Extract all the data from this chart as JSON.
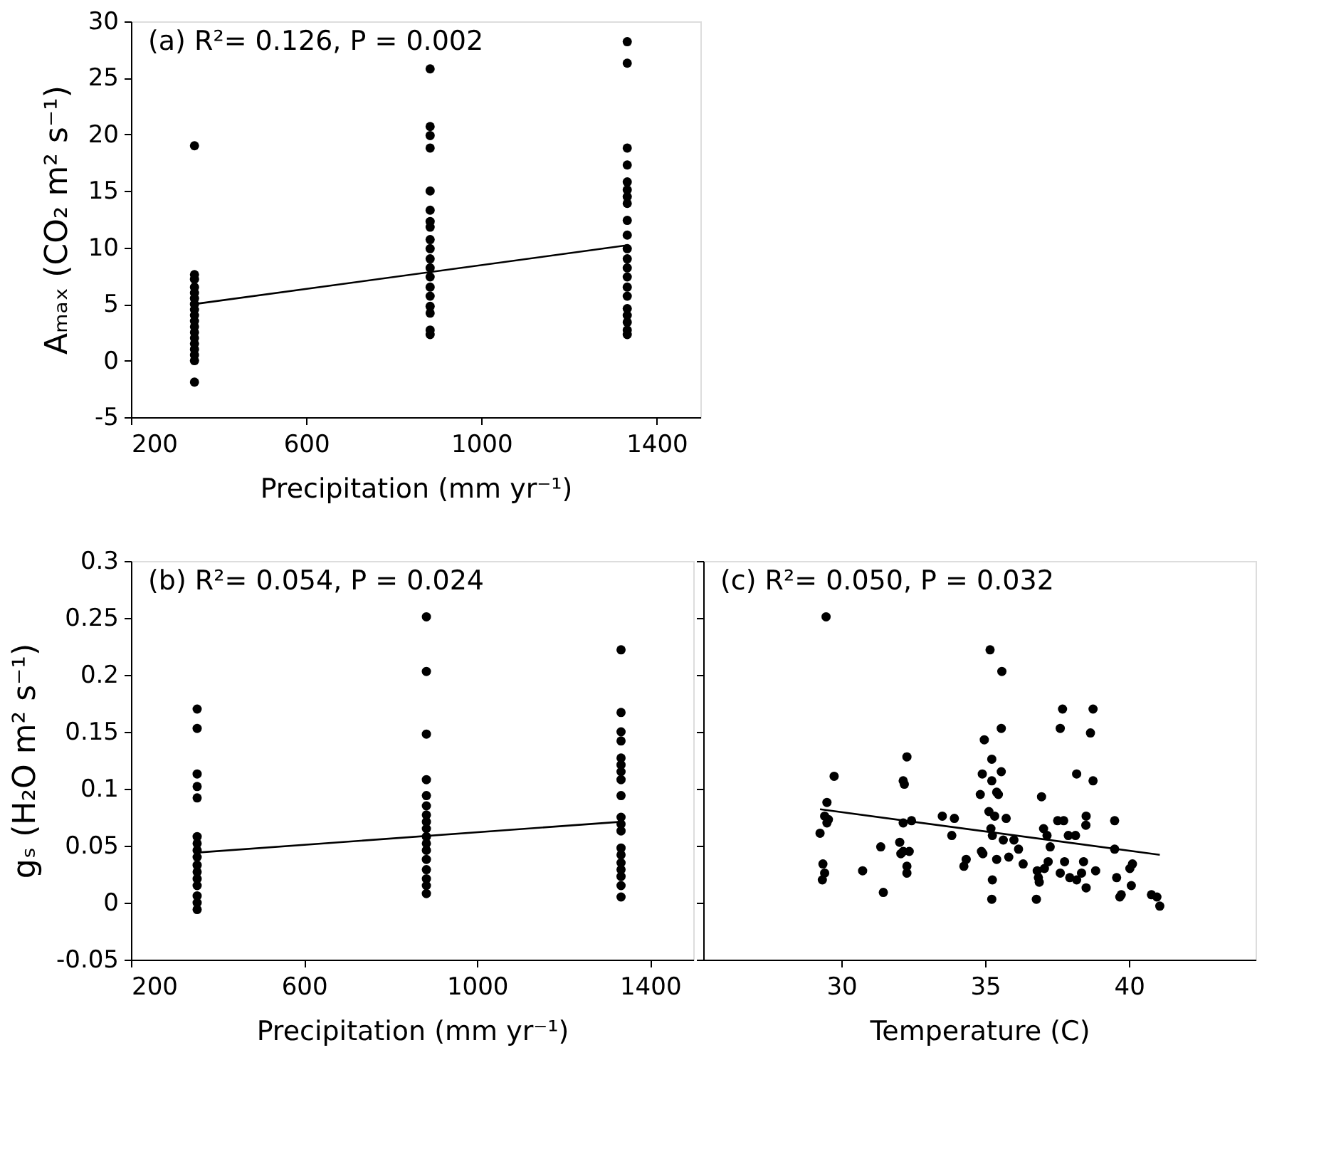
{
  "chart_data": [
    {
      "type": "scatter",
      "xlabel": "Precipitation (mm yr⁻¹)",
      "ylabel": "Aₘₐₓ (CO₂ m² s⁻¹)",
      "xlim": [
        200,
        1500
      ],
      "ylim": [
        -5,
        30
      ],
      "xticks": [
        200,
        600,
        1000,
        1400
      ],
      "yticks": [
        -5,
        0,
        5,
        10,
        15,
        20,
        25,
        30
      ],
      "annotations": [
        "(a) R²= 0.126, P = 0.002"
      ],
      "series": [
        {
          "marker": "circle",
          "color": "#000000",
          "x": [
            345,
            345,
            345,
            345,
            345,
            345,
            345,
            345,
            345,
            345,
            345,
            345,
            345,
            345,
            345,
            345,
            345,
            345,
            883,
            883,
            883,
            883,
            883,
            883,
            883,
            883,
            883,
            883,
            883,
            883,
            883,
            883,
            883,
            883,
            883,
            883,
            883,
            1333,
            1333,
            1333,
            1333,
            1333,
            1333,
            1333,
            1333,
            1333,
            1333,
            1333,
            1333,
            1333,
            1333,
            1333,
            1333,
            1333,
            1333,
            1333,
            1333,
            1333
          ],
          "values": [
            19.0,
            7.6,
            7.2,
            6.5,
            6.0,
            5.5,
            5.0,
            4.5,
            4.0,
            3.5,
            3.0,
            2.5,
            2.0,
            1.5,
            1.0,
            0.5,
            0.0,
            -1.9,
            25.8,
            20.7,
            19.9,
            18.8,
            15.0,
            13.3,
            12.3,
            11.8,
            10.7,
            9.9,
            9.0,
            8.2,
            7.4,
            6.5,
            5.7,
            4.8,
            4.2,
            2.7,
            2.3,
            28.2,
            26.3,
            18.8,
            17.3,
            15.8,
            15.1,
            14.5,
            13.9,
            12.4,
            11.1,
            9.9,
            9.0,
            8.2,
            7.4,
            6.5,
            5.7,
            4.6,
            4.0,
            3.4,
            2.7,
            2.3
          ]
        },
        {
          "type": "line",
          "line_style": "solid",
          "color": "#000000",
          "x": [
            345,
            1333
          ],
          "values": [
            5.0,
            10.2
          ]
        }
      ]
    },
    {
      "type": "scatter",
      "xlabel": "Precipitation (mm yr⁻¹)",
      "ylabel": "gₛ (H₂O m² s⁻¹)",
      "xlim": [
        200,
        1500
      ],
      "ylim": [
        -0.05,
        0.3
      ],
      "xticks": [
        200,
        600,
        1000,
        1400
      ],
      "yticks": [
        -0.05,
        0,
        0.05,
        0.1,
        0.15,
        0.2,
        0.25,
        0.3
      ],
      "annotations": [
        "(b) R²= 0.054, P = 0.024"
      ],
      "series": [
        {
          "marker": "circle",
          "color": "#000000",
          "x": [
            353,
            353,
            353,
            353,
            353,
            353,
            353,
            353,
            353,
            353,
            353,
            353,
            353,
            353,
            353,
            353,
            883,
            883,
            883,
            883,
            883,
            883,
            883,
            883,
            883,
            883,
            883,
            883,
            883,
            883,
            883,
            883,
            883,
            1333,
            1333,
            1333,
            1333,
            1333,
            1333,
            1333,
            1333,
            1333,
            1333,
            1333,
            1333,
            1333,
            1333,
            1333,
            1333,
            1333,
            1333,
            1333
          ],
          "values": [
            0.17,
            0.153,
            0.113,
            0.102,
            0.092,
            0.058,
            0.052,
            0.046,
            0.04,
            0.033,
            0.027,
            0.021,
            0.015,
            0.006,
            0,
            -0.006,
            0.251,
            0.203,
            0.148,
            0.108,
            0.094,
            0.085,
            0.077,
            0.071,
            0.065,
            0.058,
            0.052,
            0.046,
            0.038,
            0.029,
            0.021,
            0.015,
            0.008,
            0.222,
            0.167,
            0.15,
            0.142,
            0.127,
            0.121,
            0.115,
            0.108,
            0.094,
            0.075,
            0.069,
            0.063,
            0.048,
            0.042,
            0.035,
            0.029,
            0.023,
            0.015,
            0.005
          ]
        },
        {
          "type": "line",
          "line_style": "solid",
          "color": "#000000",
          "x": [
            353,
            1333
          ],
          "values": [
            0.044,
            0.071
          ]
        }
      ]
    },
    {
      "type": "scatter",
      "xlabel": "Temperature (C)",
      "xlim": [
        25.2,
        44.4
      ],
      "ylim": [
        -0.05,
        0.3
      ],
      "xticks": [
        30,
        35,
        40
      ],
      "yticks": [
        -0.05,
        0,
        0.05,
        0.1,
        0.15,
        0.2,
        0.25,
        0.3
      ],
      "tick_labels": "x",
      "annotations": [
        "(c) R²= 0.050, P = 0.032"
      ],
      "series": [
        {
          "marker": "circle",
          "color": "#000000",
          "x": [
            29.47,
            35.17,
            35.58,
            37.69,
            38.75,
            37.61,
            38.66,
            35.56,
            34.97,
            35.23,
            32.28,
            32.15,
            32.19,
            34.9,
            35.56,
            35.23,
            38.18,
            38.75,
            29.75,
            34.83,
            35.4,
            35.46,
            36.96,
            29.5,
            29.42,
            29.55,
            29.5,
            29.26,
            32.15,
            32.44,
            33.51,
            33.93,
            33.84,
            35.13,
            35.33,
            35.73,
            35.2,
            35.25,
            35.63,
            36.0,
            36.16,
            37.03,
            37.15,
            37.52,
            37.73,
            37.89,
            38.14,
            38.51,
            38.5,
            39.5,
            37.26,
            39.5,
            31.37,
            32.03,
            32.15,
            32.36,
            32.07,
            34.87,
            34.92,
            34.34,
            34.26,
            35.4,
            35.82,
            36.32,
            29.36,
            29.42,
            29.34,
            30.74,
            32.28,
            32.28,
            37.19,
            37.76,
            38.42,
            37.06,
            36.81,
            36.85,
            36.88,
            37.61,
            37.94,
            38.18,
            38.35,
            38.51,
            38.84,
            39.57,
            40.12,
            40.03,
            40.08,
            39.73,
            39.68,
            35.25,
            35.23,
            31.46,
            36.78,
            40.78,
            40.97,
            41.07
          ],
          "values": [
            0.251,
            0.222,
            0.203,
            0.17,
            0.17,
            0.153,
            0.149,
            0.153,
            0.143,
            0.126,
            0.128,
            0.107,
            0.104,
            0.113,
            0.115,
            0.107,
            0.113,
            0.107,
            0.111,
            0.095,
            0.097,
            0.095,
            0.093,
            0.088,
            0.076,
            0.073,
            0.07,
            0.061,
            0.07,
            0.072,
            0.076,
            0.074,
            0.059,
            0.08,
            0.076,
            0.074,
            0.065,
            0.059,
            0.055,
            0.055,
            0.047,
            0.065,
            0.059,
            0.072,
            0.072,
            0.059,
            0.059,
            0.076,
            0.068,
            0.072,
            0.049,
            0.047,
            0.049,
            0.053,
            0.045,
            0.045,
            0.043,
            0.045,
            0.043,
            0.038,
            0.032,
            0.038,
            0.04,
            0.034,
            0.034,
            0.026,
            0.02,
            0.028,
            0.032,
            0.026,
            0.036,
            0.036,
            0.036,
            0.03,
            0.028,
            0.022,
            0.018,
            0.026,
            0.022,
            0.02,
            0.026,
            0.013,
            0.028,
            0.022,
            0.034,
            0.03,
            0.015,
            0.007,
            0.005,
            0.02,
            0.003,
            0.009,
            0.003,
            0.007,
            0.005,
            -0.003
          ]
        },
        {
          "type": "line",
          "line_style": "solid",
          "color": "#000000",
          "x": [
            29.26,
            41.07
          ],
          "values": [
            0.082,
            0.042
          ]
        }
      ]
    }
  ]
}
